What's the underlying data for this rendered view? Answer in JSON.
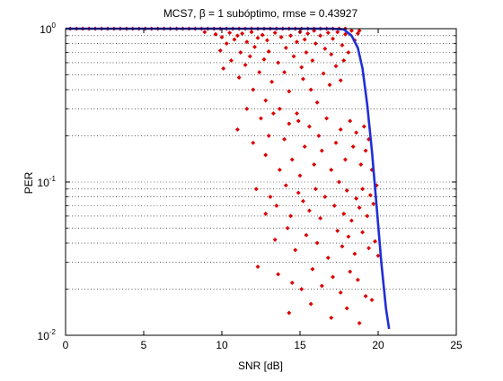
{
  "chart_data": {
    "type": "scatter",
    "title": "MCS7, β = 1 subóptimo, rmse = 0.43927",
    "xlabel": "SNR [dB]",
    "ylabel": "PER",
    "xlim": [
      0,
      25
    ],
    "ylim": [
      0.01,
      1
    ],
    "yscale": "log",
    "grid": "y-log-gridlines",
    "x_ticks": [
      0,
      5,
      10,
      15,
      20,
      25
    ],
    "y_ticks": [
      {
        "value": 0.01,
        "base": "10",
        "exp": "-2"
      },
      {
        "value": 0.1,
        "base": "10",
        "exp": "-1"
      },
      {
        "value": 1,
        "base": "10",
        "exp": "0"
      }
    ],
    "colors": {
      "scatter": "#dd0000",
      "curve": "#1f2ed6"
    },
    "series": [
      {
        "kind": "line",
        "x": [
          0,
          17.0,
          17.8,
          18.3,
          18.7,
          19.0,
          19.3,
          19.6,
          19.9,
          20.2,
          20.5,
          20.7
        ],
        "y": [
          1.0,
          1.0,
          0.99,
          0.9,
          0.75,
          0.55,
          0.32,
          0.16,
          0.07,
          0.03,
          0.015,
          0.011
        ]
      },
      {
        "kind": "scatter",
        "x": [
          0.3,
          0.7,
          1.1,
          1.5,
          1.9,
          2.3,
          2.7,
          3.1,
          3.5,
          3.9,
          4.3,
          4.7,
          5.1,
          5.5,
          5.9,
          6.3,
          6.7,
          7.1,
          7.5,
          7.9,
          8.3,
          8.7,
          9.1,
          9.5,
          9.9,
          10.3,
          10.7,
          11.1,
          11.5,
          11.9,
          12.3,
          12.7,
          13.1,
          13.5,
          13.9,
          14.3,
          14.7,
          15.1,
          15.5,
          15.9,
          16.3,
          16.7,
          17.1,
          17.5,
          17.9,
          8.9,
          9.6,
          9.9,
          10.0,
          10.1,
          10.3,
          10.5,
          10.6,
          10.8,
          11.0,
          11.1,
          11.2,
          11.3,
          11.5,
          11.6,
          11.8,
          11.9,
          12.0,
          12.1,
          12.3,
          12.4,
          12.6,
          12.7,
          12.8,
          12.9,
          13.0,
          13.2,
          13.4,
          13.6,
          13.7,
          13.8,
          14.0,
          14.1,
          14.3,
          14.4,
          14.6,
          14.8,
          14.9,
          15.0,
          15.1,
          15.2,
          15.3,
          15.4,
          15.5,
          15.7,
          15.8,
          15.9,
          16.0,
          16.1,
          16.3,
          16.5,
          16.6,
          16.8,
          16.9,
          17.0,
          17.1,
          17.3,
          17.4,
          17.6,
          17.7,
          17.8,
          17.9,
          18.1,
          18.3,
          18.5,
          18.7,
          18.8,
          11.0,
          11.6,
          12.0,
          12.5,
          12.8,
          13.0,
          13.3,
          13.7,
          14.0,
          14.3,
          14.5,
          14.8,
          15.0,
          15.3,
          15.6,
          15.9,
          16.2,
          16.4,
          16.7,
          17.0,
          17.3,
          17.6,
          17.9,
          18.2,
          18.4,
          18.6,
          18.9,
          19.1,
          19.2,
          19.4,
          19.6,
          12.2,
          13.1,
          13.5,
          14.1,
          14.4,
          14.9,
          15.2,
          15.6,
          16.0,
          16.3,
          16.6,
          17.2,
          17.5,
          17.8,
          18.0,
          18.3,
          18.6,
          18.8,
          19.0,
          19.3,
          19.5,
          19.7,
          19.9,
          12.8,
          13.4,
          14.2,
          14.7,
          15.4,
          16.1,
          16.8,
          17.4,
          17.7,
          18.1,
          18.5,
          19.0,
          19.4,
          19.8,
          20.0,
          12.3,
          13.6,
          14.5,
          15.1,
          15.8,
          16.4,
          17.1,
          17.6,
          18.2,
          18.7,
          19.2,
          14.3,
          15.7,
          17.0,
          18.0,
          18.8,
          19.6
        ],
        "y": [
          1,
          1,
          1,
          1,
          1,
          1,
          1,
          1,
          1,
          1,
          1,
          1,
          1,
          1,
          1,
          1,
          1,
          1,
          1,
          1,
          1,
          1,
          1,
          1,
          1,
          1,
          1,
          1,
          1,
          1,
          1,
          1,
          1,
          1,
          1,
          1,
          1,
          1,
          1,
          1,
          1,
          1,
          1,
          1,
          1,
          0.95,
          0.92,
          0.72,
          0.88,
          0.55,
          0.8,
          0.94,
          0.62,
          0.85,
          0.9,
          0.48,
          0.7,
          0.93,
          0.58,
          0.82,
          0.66,
          0.95,
          0.4,
          0.76,
          0.87,
          0.52,
          0.91,
          0.63,
          0.34,
          0.84,
          0.71,
          0.45,
          0.94,
          0.6,
          0.3,
          0.88,
          0.52,
          0.75,
          0.39,
          0.9,
          0.66,
          0.82,
          0.25,
          0.95,
          0.56,
          0.47,
          0.85,
          0.7,
          0.93,
          0.4,
          0.62,
          0.97,
          0.8,
          0.33,
          0.9,
          0.51,
          0.74,
          0.94,
          0.43,
          0.68,
          0.86,
          0.57,
          0.95,
          0.46,
          0.78,
          0.62,
          0.92,
          0.7,
          0.97,
          0.84,
          0.93,
          0.97,
          0.22,
          0.3,
          0.18,
          0.26,
          0.15,
          0.2,
          0.28,
          0.12,
          0.19,
          0.24,
          0.14,
          0.28,
          0.11,
          0.17,
          0.23,
          0.13,
          0.2,
          0.16,
          0.26,
          0.12,
          0.18,
          0.22,
          0.14,
          0.25,
          0.17,
          0.21,
          0.13,
          0.23,
          0.16,
          0.19,
          0.12,
          0.09,
          0.08,
          0.07,
          0.095,
          0.06,
          0.085,
          0.075,
          0.065,
          0.09,
          0.058,
          0.08,
          0.07,
          0.1,
          0.062,
          0.088,
          0.056,
          0.078,
          0.068,
          0.09,
          0.06,
          0.082,
          0.072,
          0.095,
          0.062,
          0.042,
          0.05,
          0.036,
          0.045,
          0.04,
          0.032,
          0.048,
          0.038,
          0.044,
          0.034,
          0.047,
          0.037,
          0.041,
          0.033,
          0.028,
          0.025,
          0.022,
          0.02,
          0.027,
          0.021,
          0.024,
          0.019,
          0.026,
          0.023,
          0.018,
          0.014,
          0.016,
          0.013,
          0.015,
          0.012,
          0.017
        ]
      }
    ]
  }
}
